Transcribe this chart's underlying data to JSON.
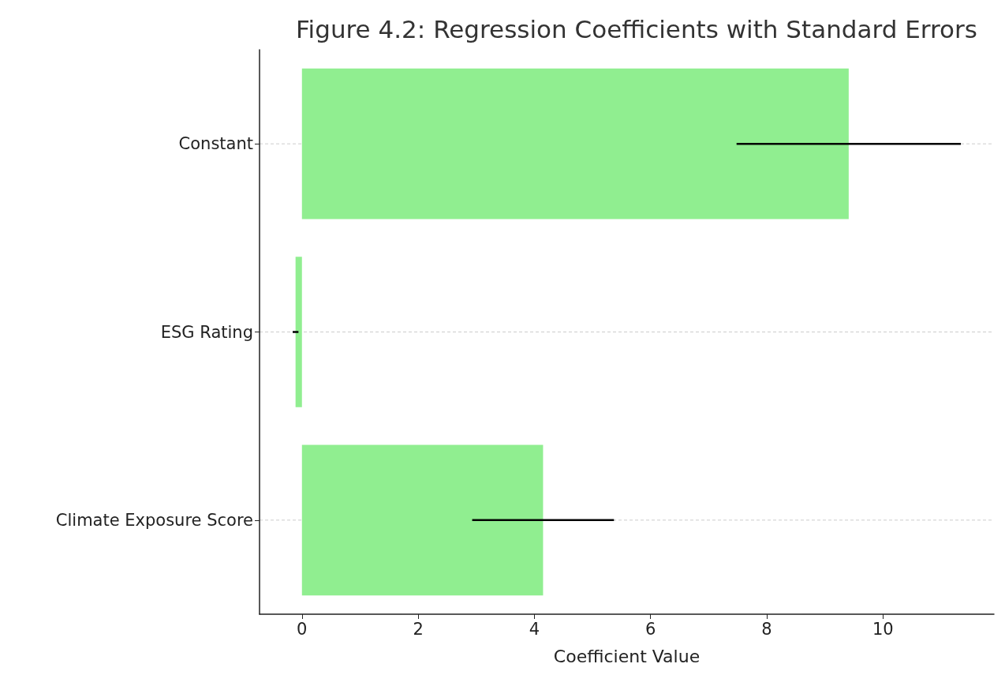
{
  "chart_data": {
    "type": "bar",
    "orientation": "horizontal",
    "title": "Figure 4.2: Regression Coefficients with Standard Errors",
    "xlabel": "Coefficient Value",
    "categories": [
      "Constant",
      "ESG Rating",
      "Climate Exposure Score"
    ],
    "values": [
      9.41,
      -0.11,
      4.15
    ],
    "errors": [
      1.93,
      0.05,
      1.22
    ],
    "color": "#90ee90",
    "xlim": [
      -0.73,
      11.91
    ],
    "xticks": [
      0,
      2,
      4,
      6,
      8,
      10
    ],
    "grid": "y"
  }
}
